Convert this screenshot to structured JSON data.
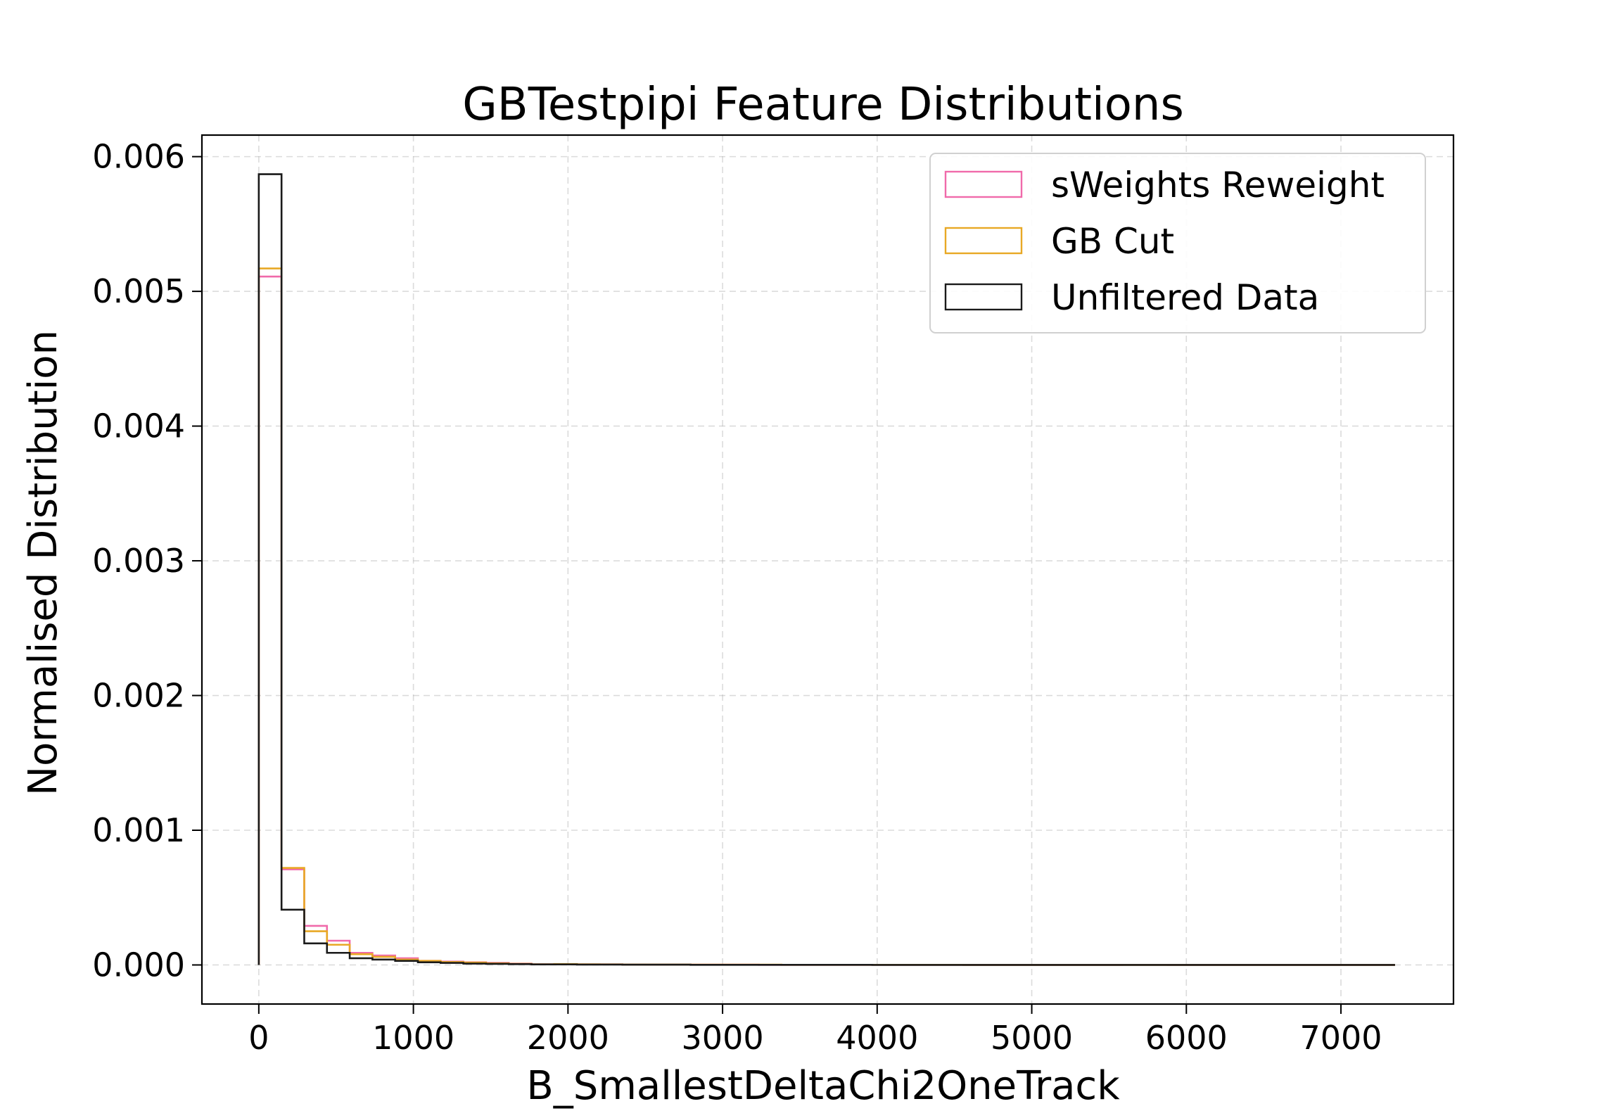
{
  "chart_data": {
    "type": "histogram",
    "title": "GBTestpipi Feature Distributions",
    "xlabel": "B_SmallestDeltaChi2OneTrack",
    "ylabel": "Normalised Distribution",
    "xlim": [
      -368,
      7728
    ],
    "ylim": [
      -0.00029,
      0.00616
    ],
    "xticks": [
      0,
      1000,
      2000,
      3000,
      4000,
      5000,
      6000,
      7000
    ],
    "xtick_labels": [
      "0",
      "1000",
      "2000",
      "3000",
      "4000",
      "5000",
      "6000",
      "7000"
    ],
    "yticks": [
      0.0,
      0.001,
      0.002,
      0.003,
      0.004,
      0.005,
      0.006
    ],
    "ytick_labels": [
      "0.000",
      "0.001",
      "0.002",
      "0.003",
      "0.004",
      "0.005",
      "0.006"
    ],
    "grid": true,
    "legend_position": "upper-right",
    "bin_edges": [
      0,
      147,
      294,
      441,
      588,
      735,
      882,
      1029,
      1176,
      1323,
      1470,
      1617,
      1764,
      1911,
      2058,
      2205,
      2352,
      2499,
      2646,
      2793,
      2940,
      3087,
      3234,
      3381,
      3528,
      3675,
      3822,
      3969,
      4116,
      4263,
      4410,
      4557,
      4704,
      4851,
      4998,
      5145,
      5292,
      5439,
      5586,
      5733,
      5880,
      6027,
      6174,
      6321,
      6468,
      6615,
      6762,
      6909,
      7056,
      7203,
      7350
    ],
    "series": [
      {
        "name": "sWeights Reweight",
        "color": "#f06aaa",
        "values": [
          0.00511,
          0.00071,
          0.00029,
          0.00018,
          9e-05,
          7e-05,
          5e-05,
          3e-05,
          2.5e-05,
          2e-05,
          1.5e-05,
          1e-05,
          5e-06,
          6e-06,
          4e-06,
          4e-06,
          3e-06,
          2e-06,
          3e-06,
          2e-06,
          2e-06,
          2e-06,
          1e-06,
          1e-06,
          1e-06,
          1e-06,
          1e-06,
          1e-06,
          1e-06,
          1e-06,
          1e-06,
          0,
          0,
          0,
          0,
          0,
          0,
          0,
          1e-06,
          1e-06,
          0,
          0,
          0,
          0,
          0,
          0,
          0,
          0,
          0,
          0
        ]
      },
      {
        "name": "GB Cut",
        "color": "#e8a825",
        "values": [
          0.00517,
          0.00072,
          0.00025,
          0.00015,
          8e-05,
          6e-05,
          4e-05,
          3e-05,
          2.2e-05,
          1.8e-05,
          1.2e-05,
          8e-06,
          5e-06,
          7e-06,
          5e-06,
          4e-06,
          3e-06,
          3e-06,
          3e-06,
          2e-06,
          2e-06,
          2e-06,
          2e-06,
          1e-06,
          1e-06,
          1e-06,
          1e-06,
          1e-06,
          1e-06,
          1e-06,
          1e-06,
          0,
          0,
          0,
          0,
          0,
          0,
          0,
          0,
          0,
          0,
          0,
          0,
          0,
          0,
          0,
          0,
          0,
          0,
          0
        ]
      },
      {
        "name": "Unfiltered Data",
        "color": "#1a1a1a",
        "values": [
          0.00587,
          0.00041,
          0.00016,
          9e-05,
          5e-05,
          4e-05,
          3e-05,
          2e-05,
          1.5e-05,
          1e-05,
          8e-06,
          6e-06,
          4e-06,
          4e-06,
          3e-06,
          3e-06,
          2e-06,
          2e-06,
          2e-06,
          1e-06,
          1e-06,
          1e-06,
          1e-06,
          1e-06,
          1e-06,
          1e-06,
          1e-06,
          0,
          0,
          0,
          0,
          0,
          0,
          0,
          0,
          0,
          0,
          0,
          0,
          0,
          0,
          0,
          0,
          0,
          0,
          0,
          0,
          0,
          0,
          0
        ]
      }
    ]
  }
}
